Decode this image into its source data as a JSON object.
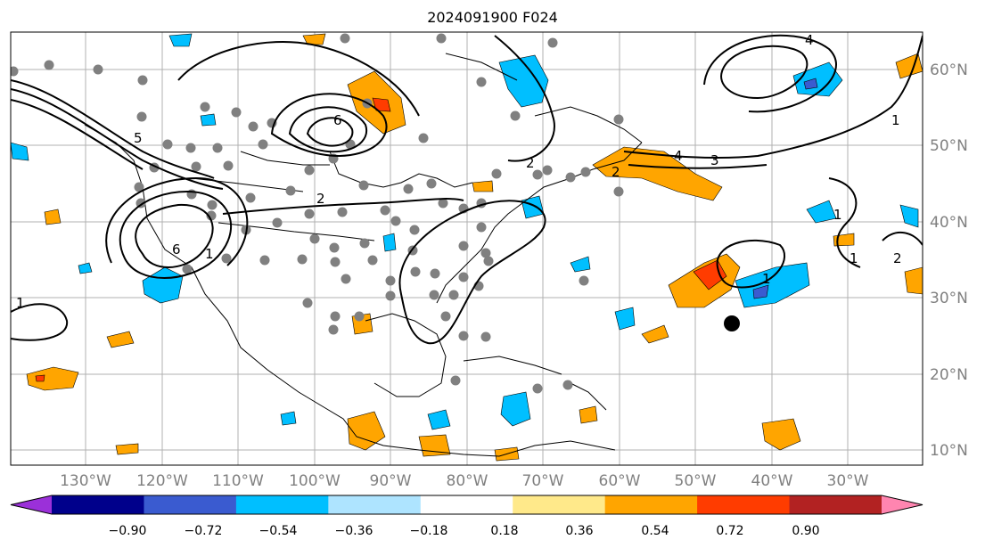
{
  "title": "2024091900 F024",
  "map": {
    "lon_labels": [
      "130°W",
      "120°W",
      "110°W",
      "100°W",
      "90°W",
      "80°W",
      "70°W",
      "60°W",
      "50°W",
      "40°W",
      "30°W"
    ],
    "lat_labels": [
      "60°N",
      "50°N",
      "40°N",
      "30°N",
      "20°N",
      "10°N"
    ],
    "contour_labels": [
      "1",
      "2",
      "5",
      "6",
      "2",
      "2",
      "3",
      "4",
      "1",
      "1",
      "1",
      "1",
      "1",
      "2",
      "4",
      "6"
    ]
  },
  "colorbar": {
    "tick_labels": [
      "−0.90",
      "−0.72",
      "−0.54",
      "−0.36",
      "−0.18",
      "0.18",
      "0.36",
      "0.54",
      "0.72",
      "0.90"
    ],
    "colors": [
      "#9b30d9",
      "#00008b",
      "#3a5bd0",
      "#00bfff",
      "#aee4ff",
      "#ffffff",
      "#ffe98a",
      "#ffa500",
      "#ff3c00",
      "#b22222",
      "#ff85b0"
    ]
  }
}
